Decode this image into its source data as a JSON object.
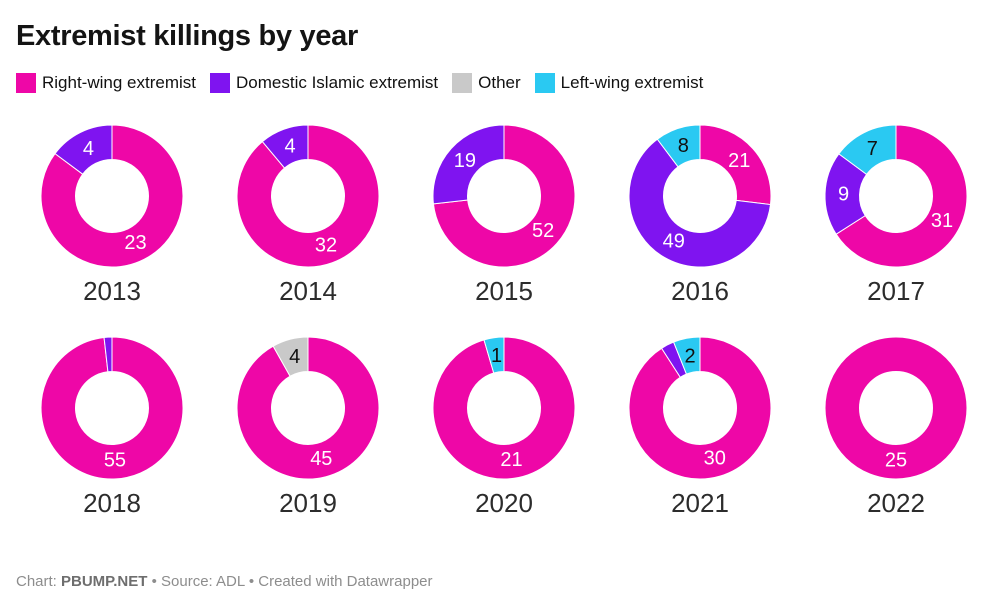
{
  "title": "Extremist killings by year",
  "legend": {
    "items": [
      {
        "label": "Right-wing extremist",
        "color": "#ee07a7",
        "value_text_color": "#ffffff"
      },
      {
        "label": "Domestic Islamic extremist",
        "color": "#7f14f0",
        "value_text_color": "#ffffff"
      },
      {
        "label": "Other",
        "color": "#c9c9c9",
        "value_text_color": "#111111"
      },
      {
        "label": "Left-wing extremist",
        "color": "#2ac9f2",
        "value_text_color": "#111111"
      }
    ]
  },
  "chart_data": {
    "type": "pie",
    "variant": "donut-small-multiples",
    "title": "Extremist killings by year",
    "legend_position": "top",
    "direction": "clockwise",
    "start_angle_deg": 0,
    "categories": [
      "Right-wing extremist",
      "Domestic Islamic extremist",
      "Other",
      "Left-wing extremist"
    ],
    "years": [
      {
        "year": "2013",
        "segments": [
          {
            "category": "Right-wing extremist",
            "value": 23,
            "label": "23"
          },
          {
            "category": "Domestic Islamic extremist",
            "value": 4,
            "label": "4"
          }
        ]
      },
      {
        "year": "2014",
        "segments": [
          {
            "category": "Right-wing extremist",
            "value": 32,
            "label": "32"
          },
          {
            "category": "Domestic Islamic extremist",
            "value": 4,
            "label": "4"
          }
        ]
      },
      {
        "year": "2015",
        "segments": [
          {
            "category": "Right-wing extremist",
            "value": 52,
            "label": "52"
          },
          {
            "category": "Domestic Islamic extremist",
            "value": 19,
            "label": "19"
          }
        ]
      },
      {
        "year": "2016",
        "segments": [
          {
            "category": "Right-wing extremist",
            "value": 21,
            "label": "21"
          },
          {
            "category": "Domestic Islamic extremist",
            "value": 49,
            "label": "49"
          },
          {
            "category": "Left-wing extremist",
            "value": 8,
            "label": "8"
          }
        ]
      },
      {
        "year": "2017",
        "segments": [
          {
            "category": "Right-wing extremist",
            "value": 31,
            "label": "31"
          },
          {
            "category": "Domestic Islamic extremist",
            "value": 9,
            "label": "9"
          },
          {
            "category": "Left-wing extremist",
            "value": 7,
            "label": "7"
          }
        ]
      },
      {
        "year": "2018",
        "segments": [
          {
            "category": "Right-wing extremist",
            "value": 55,
            "label": "55"
          },
          {
            "category": "Domestic Islamic extremist",
            "value": 1,
            "label": ""
          }
        ]
      },
      {
        "year": "2019",
        "segments": [
          {
            "category": "Right-wing extremist",
            "value": 45,
            "label": "45"
          },
          {
            "category": "Other",
            "value": 4,
            "label": "4"
          }
        ]
      },
      {
        "year": "2020",
        "segments": [
          {
            "category": "Right-wing extremist",
            "value": 21,
            "label": "21"
          },
          {
            "category": "Left-wing extremist",
            "value": 1,
            "label": "1"
          }
        ]
      },
      {
        "year": "2021",
        "segments": [
          {
            "category": "Right-wing extremist",
            "value": 30,
            "label": "30"
          },
          {
            "category": "Domestic Islamic extremist",
            "value": 1,
            "label": ""
          },
          {
            "category": "Left-wing extremist",
            "value": 2,
            "label": "2"
          }
        ]
      },
      {
        "year": "2022",
        "segments": [
          {
            "category": "Right-wing extremist",
            "value": 25,
            "label": "25"
          }
        ]
      }
    ]
  },
  "footer": {
    "chart_label": "Chart: ",
    "chart_credit": "PBUMP.NET",
    "rest": " • Source: ADL • Created with Datawrapper"
  }
}
